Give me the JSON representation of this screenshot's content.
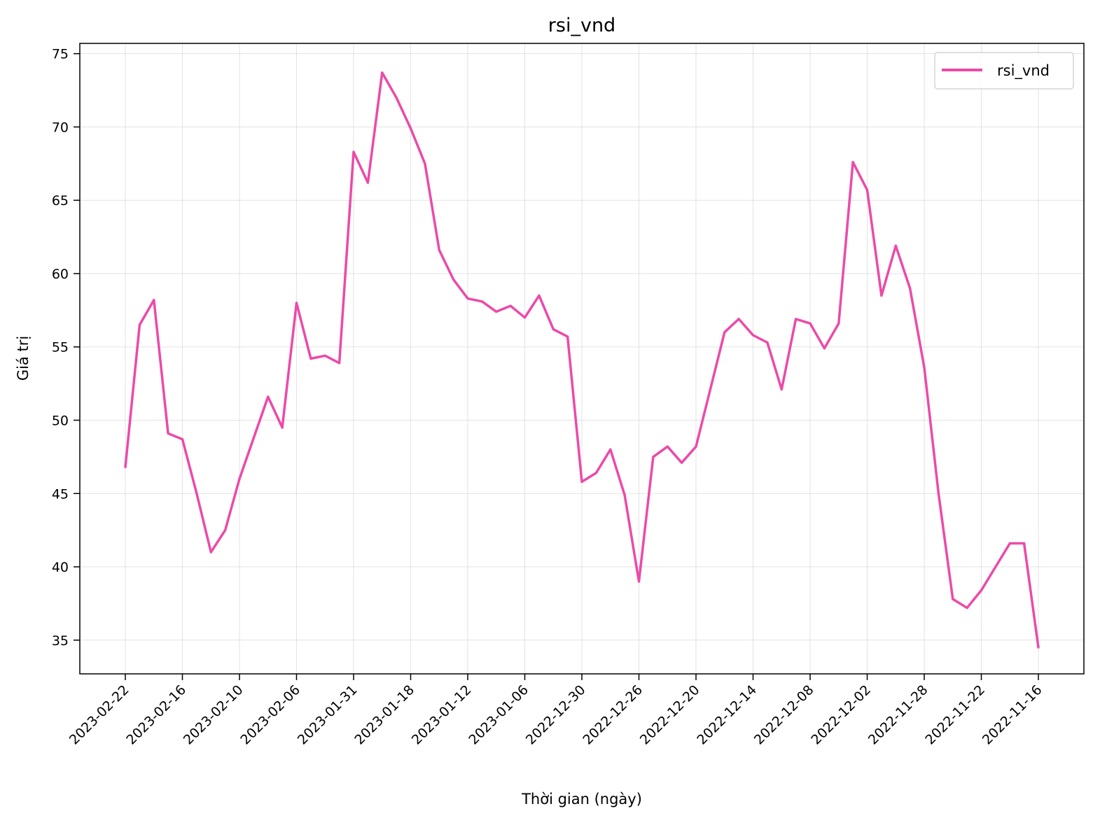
{
  "chart_data": {
    "type": "line",
    "title": "rsi_vnd",
    "xlabel": "Thời gian (ngày)",
    "ylabel": "Giá trị",
    "ylim": [
      32.7,
      75.7
    ],
    "yticks": [
      35,
      40,
      45,
      50,
      55,
      60,
      65,
      70,
      75
    ],
    "grid": true,
    "legend_position": "top-right",
    "x_tick_labels": [
      "2023-02-22",
      "2023-02-16",
      "2023-02-10",
      "2023-02-06",
      "2023-01-31",
      "2023-01-18",
      "2023-01-12",
      "2023-01-06",
      "2022-12-30",
      "2022-12-26",
      "2022-12-20",
      "2022-12-14",
      "2022-12-08",
      "2022-12-02",
      "2022-11-28",
      "2022-11-22",
      "2022-11-16"
    ],
    "series": [
      {
        "name": "rsi_vnd",
        "color": "#ec4aa8",
        "values": [
          46.8,
          56.5,
          58.2,
          49.1,
          48.7,
          45.0,
          41.0,
          42.5,
          46.0,
          48.8,
          51.6,
          49.5,
          58.0,
          54.2,
          54.4,
          53.9,
          68.3,
          66.2,
          73.7,
          72.0,
          69.9,
          67.5,
          61.6,
          59.6,
          58.3,
          58.1,
          57.4,
          57.8,
          57.0,
          58.5,
          56.2,
          55.7,
          45.8,
          46.4,
          48.0,
          44.9,
          39.0,
          47.5,
          48.2,
          47.1,
          48.2,
          52.1,
          56.0,
          56.9,
          55.8,
          55.3,
          52.1,
          56.9,
          56.6,
          54.9,
          56.6,
          67.6,
          65.7,
          58.5,
          61.9,
          59.0,
          53.6,
          45.0,
          37.8,
          37.2,
          38.4,
          40.0,
          41.6,
          41.6,
          34.5
        ]
      }
    ]
  }
}
